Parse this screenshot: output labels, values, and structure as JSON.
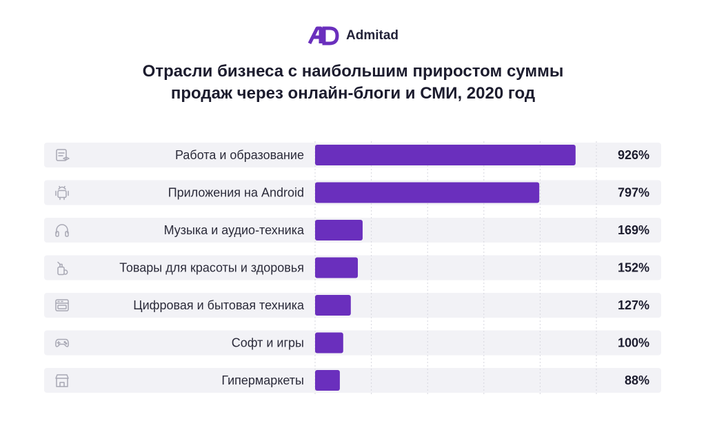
{
  "brand": {
    "name": "Admitad",
    "color": "#6a2fbd",
    "logo": "admitad-logo-icon"
  },
  "title_lines": [
    "Отрасли бизнеса с наибольшим приростом суммы",
    "продаж через онлайн-блоги и СМИ, 2020 год"
  ],
  "chart_data": {
    "type": "bar",
    "orientation": "horizontal",
    "title": "Отрасли бизнеса с наибольшим приростом суммы продаж через онлайн-блоги и СМИ, 2020 год",
    "categories": [
      "Работа и образование",
      "Приложения на Android",
      "Музыка и аудио-техника",
      "Товары для красоты и здоровья",
      "Цифровая и бытовая техника",
      "Софт и игры",
      "Гипермаркеты"
    ],
    "values": [
      926,
      797,
      169,
      152,
      127,
      100,
      88
    ],
    "value_labels": [
      "926%",
      "797%",
      "169%",
      "152%",
      "127%",
      "100%",
      "88%"
    ],
    "unit": "%",
    "icons": [
      "document-education-icon",
      "android-icon",
      "headphones-icon",
      "cosmetics-bottle-icon",
      "oven-appliance-icon",
      "gamepad-icon",
      "store-icon"
    ],
    "xlim": [
      0,
      1000
    ],
    "grid": true,
    "bar_color": "#6a2fbd"
  }
}
